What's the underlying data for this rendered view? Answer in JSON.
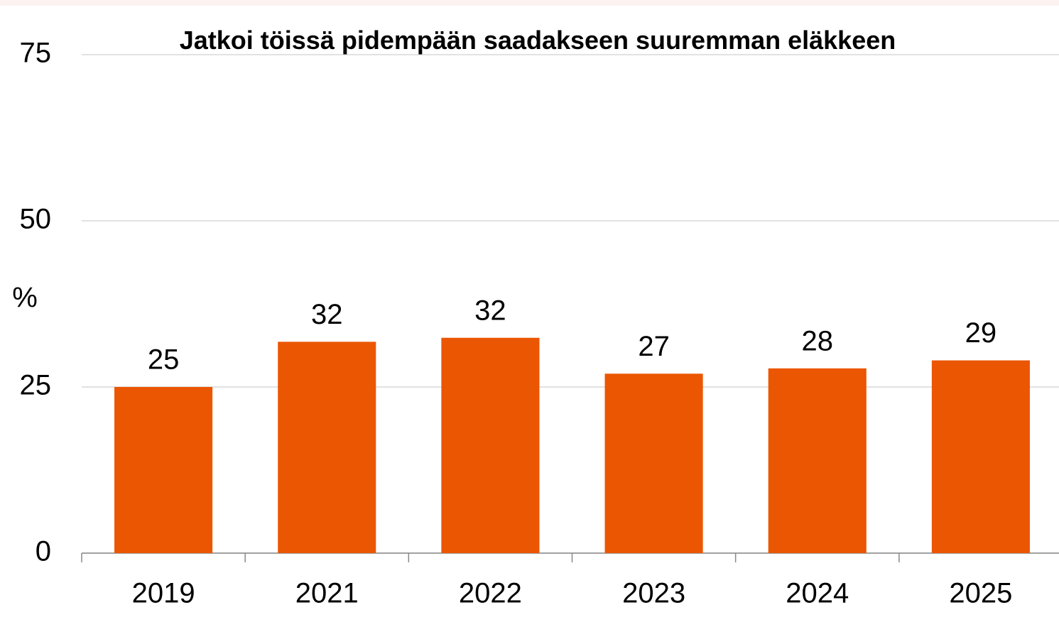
{
  "chart_data": {
    "type": "bar",
    "title": "Jatkoi töissä pidempään saadakseen suuremman eläkkeen",
    "y_label": "%",
    "categories": [
      "2019",
      "2021",
      "2022",
      "2023",
      "2024",
      "2025"
    ],
    "values": [
      25,
      31.8,
      32.4,
      27,
      27.8,
      29
    ],
    "value_labels": [
      "25",
      "32",
      "32",
      "27",
      "28",
      "29"
    ],
    "color": "#eb5603",
    "ylim": [
      0,
      75
    ],
    "yticks": [
      0,
      25,
      50,
      75
    ],
    "grid": true
  }
}
